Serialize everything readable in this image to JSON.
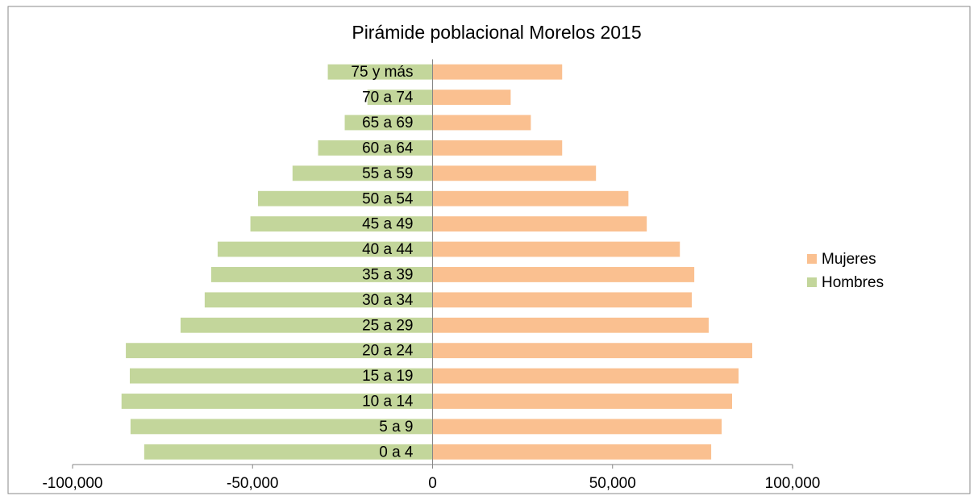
{
  "chart_data": {
    "type": "bar",
    "orientation": "horizontal",
    "title": "Pirámide poblacional Morelos 2015",
    "categories": [
      "0 a 4",
      "5 a 9",
      "10 a 14",
      "15 a 19",
      "20 a 24",
      "25 a 29",
      "30 a 34",
      "35 a 39",
      "40 a 44",
      "45 a 49",
      "50 a 54",
      "55 a 59",
      "60 a 64",
      "65 a 69",
      "70 a 74",
      "75 y más"
    ],
    "series": [
      {
        "name": "Mujeres",
        "color": "#fac090",
        "values": [
          77400,
          80300,
          83200,
          85000,
          88800,
          76700,
          72000,
          72700,
          68700,
          59500,
          54400,
          45400,
          36000,
          27300,
          21700,
          36000
        ]
      },
      {
        "name": "Hombres",
        "color": "#c3d69b",
        "values": [
          -80100,
          -83900,
          -86400,
          -84100,
          -85200,
          -70000,
          -63300,
          -61500,
          -59700,
          -50600,
          -48500,
          -38900,
          -31800,
          -24400,
          -18100,
          -29100
        ]
      }
    ],
    "xlim": [
      -100000,
      100000
    ],
    "xticks": [
      {
        "value": -100000,
        "label": "-100,000"
      },
      {
        "value": -50000,
        "label": "-50,000"
      },
      0,
      {
        "value": 50000,
        "label": "50,000"
      },
      {
        "value": 100000,
        "label": "100,000"
      }
    ],
    "legend": "right",
    "grid": false
  }
}
